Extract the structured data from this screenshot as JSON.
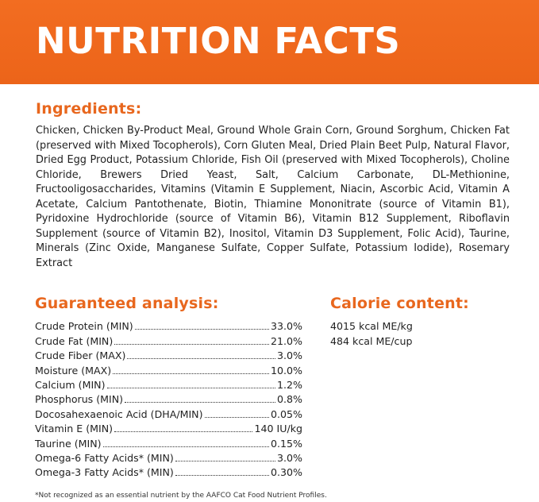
{
  "banner": {
    "title": "NUTRITION FACTS"
  },
  "ingredients": {
    "heading": "Ingredients:",
    "text": "Chicken, Chicken By-Product Meal, Ground Whole Grain Corn, Ground Sorghum, Chicken Fat (preserved with Mixed Tocopherols), Corn Gluten Meal, Dried Plain Beet Pulp, Natural Flavor, Dried Egg Product, Potassium Chloride, Fish Oil (preserved with Mixed Tocopherols), Choline Chloride, Brewers Dried Yeast, Salt, Calcium Carbonate, DL-Methionine, Fructooligosaccharides, Vitamins (Vitamin E Supplement, Niacin, Ascorbic Acid, Vitamin A Acetate, Calcium Pantothenate, Biotin, Thiamine Mononitrate (source of Vitamin B1), Pyridoxine Hydrochloride (source of Vitamin B6), Vitamin B12 Supplement, Riboflavin Supplement (source of Vitamin B2), Inositol, Vitamin D3 Supplement, Folic Acid), Taurine, Minerals (Zinc Oxide, Manganese Sulfate, Copper Sulfate, Potassium Iodide), Rosemary Extract"
  },
  "guaranteed_analysis": {
    "heading": "Guaranteed analysis:",
    "rows": [
      {
        "name": "Crude Protein (MIN)",
        "value": "33.0%"
      },
      {
        "name": "Crude Fat (MIN)",
        "value": "21.0%"
      },
      {
        "name": "Crude Fiber (MAX)",
        "value": "3.0%"
      },
      {
        "name": "Moisture (MAX)",
        "value": "10.0%"
      },
      {
        "name": "Calcium (MIN)",
        "value": "1.2%"
      },
      {
        "name": "Phosphorus (MIN)",
        "value": "0.8%"
      },
      {
        "name": "Docosahexaenoic Acid (DHA/MIN)",
        "value": "0.05%"
      },
      {
        "name": "Vitamin E (MIN)",
        "value": "140 IU/kg"
      },
      {
        "name": "Taurine (MIN)",
        "value": "0.15%"
      },
      {
        "name": "Omega-6 Fatty Acids* (MIN)",
        "value": "3.0%"
      },
      {
        "name": "Omega-3 Fatty Acids* (MIN)",
        "value": "0.30%"
      }
    ]
  },
  "calorie_content": {
    "heading": "Calorie content:",
    "lines": [
      "4015 kcal ME/kg",
      "484 kcal ME/cup"
    ]
  },
  "footnote": "*Not recognized as an essential nutrient by the AAFCO Cat Food Nutrient Profiles.",
  "colors": {
    "banner": "#f26d21",
    "heading": "#e8671e",
    "text": "#222222"
  }
}
